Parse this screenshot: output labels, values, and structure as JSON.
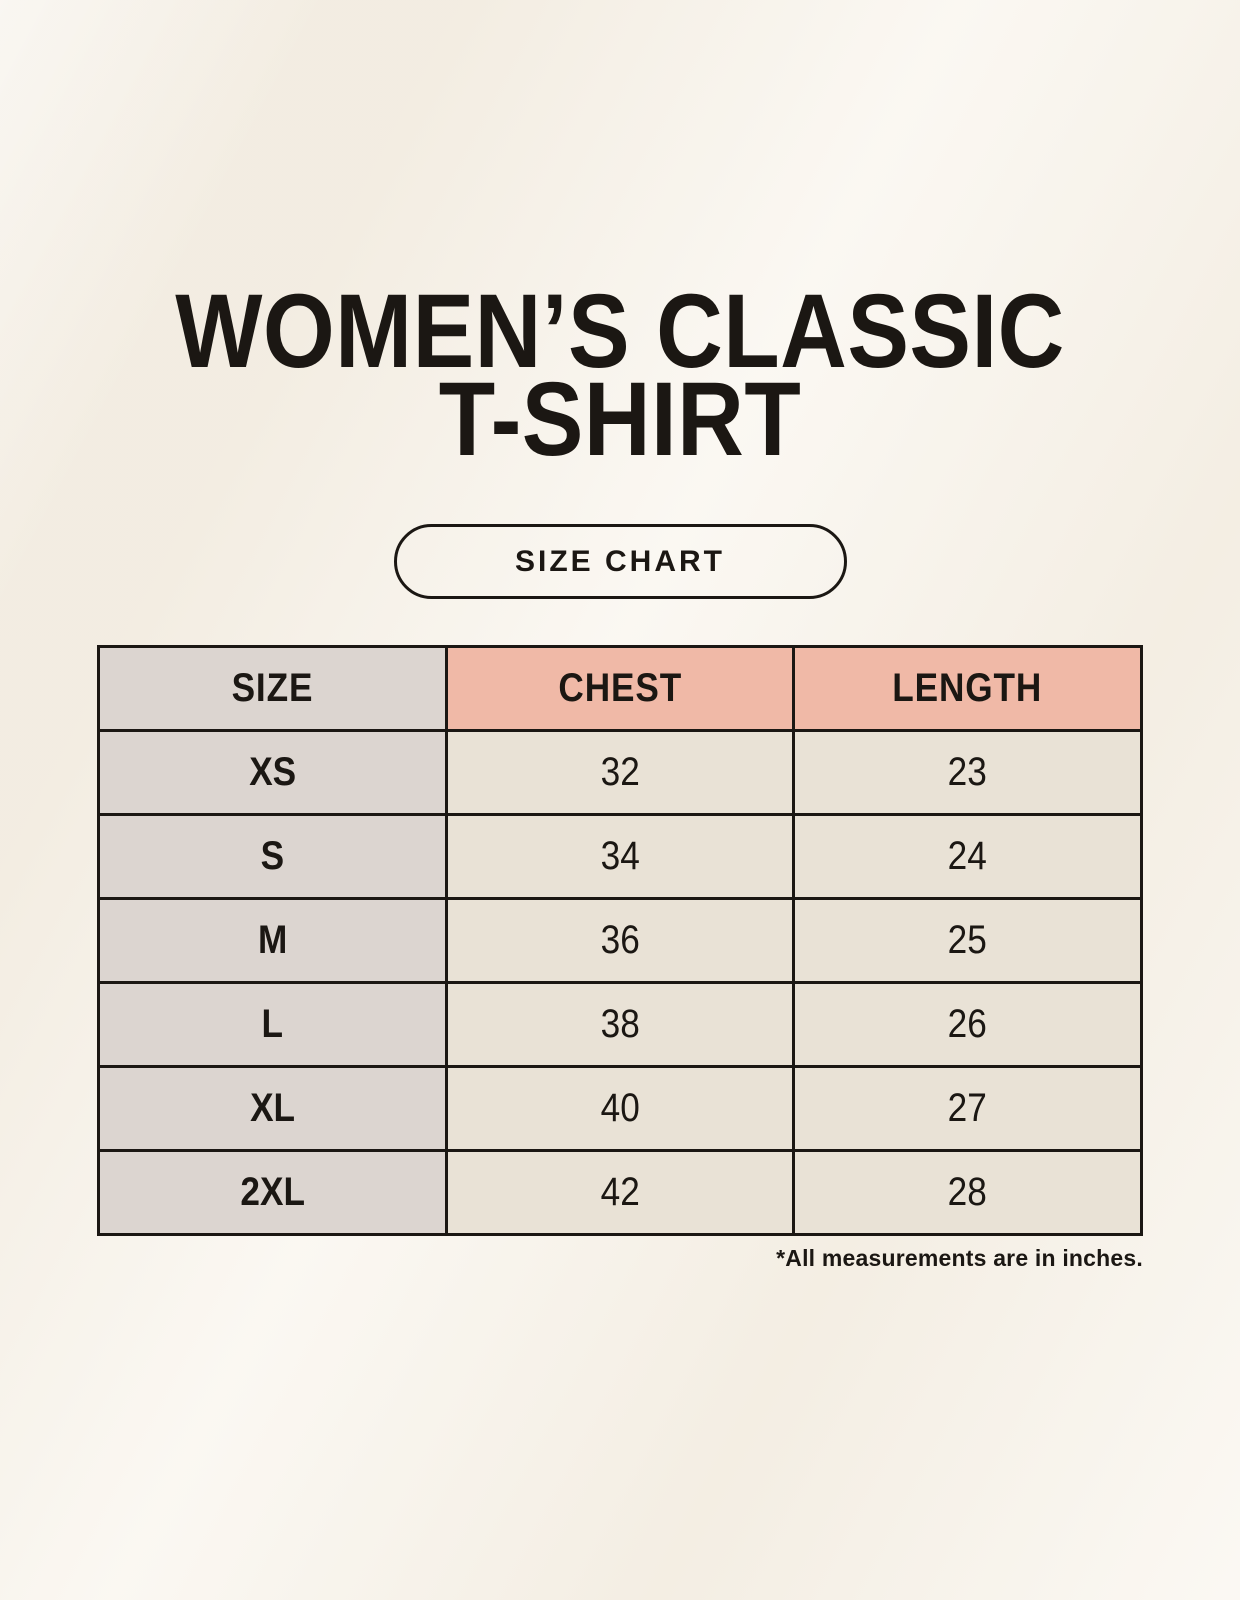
{
  "header": {
    "title_line1": "WOMEN’S CLASSIC",
    "title_line2": "T-SHIRT",
    "badge_label": "SIZE CHART"
  },
  "table": {
    "columns": [
      "SIZE",
      "CHEST",
      "LENGTH"
    ],
    "rows": [
      {
        "size": "XS",
        "chest": "32",
        "length": "23"
      },
      {
        "size": "S",
        "chest": "34",
        "length": "24"
      },
      {
        "size": "M",
        "chest": "36",
        "length": "25"
      },
      {
        "size": "L",
        "chest": "38",
        "length": "26"
      },
      {
        "size": "XL",
        "chest": "40",
        "length": "27"
      },
      {
        "size": "2XL",
        "chest": "42",
        "length": "28"
      }
    ]
  },
  "footnote": {
    "text": "*All measurements are in inches."
  },
  "colors": {
    "page_background": "#f8f3ea",
    "size_column": "#dcd5d0",
    "header_accent": "#f0b9a7",
    "value_cell": "#e9e2d6",
    "border": "#1b1713",
    "text": "#1b1713"
  },
  "chart_data": {
    "type": "table",
    "title": "WOMEN’S CLASSIC T-SHIRT — SIZE CHART",
    "columns": [
      "SIZE",
      "CHEST",
      "LENGTH"
    ],
    "rows": [
      [
        "XS",
        32,
        23
      ],
      [
        "S",
        34,
        24
      ],
      [
        "M",
        36,
        25
      ],
      [
        "L",
        38,
        26
      ],
      [
        "XL",
        40,
        27
      ],
      [
        "2XL",
        42,
        28
      ]
    ],
    "units": "inches",
    "note": "*All measurements are in inches."
  }
}
